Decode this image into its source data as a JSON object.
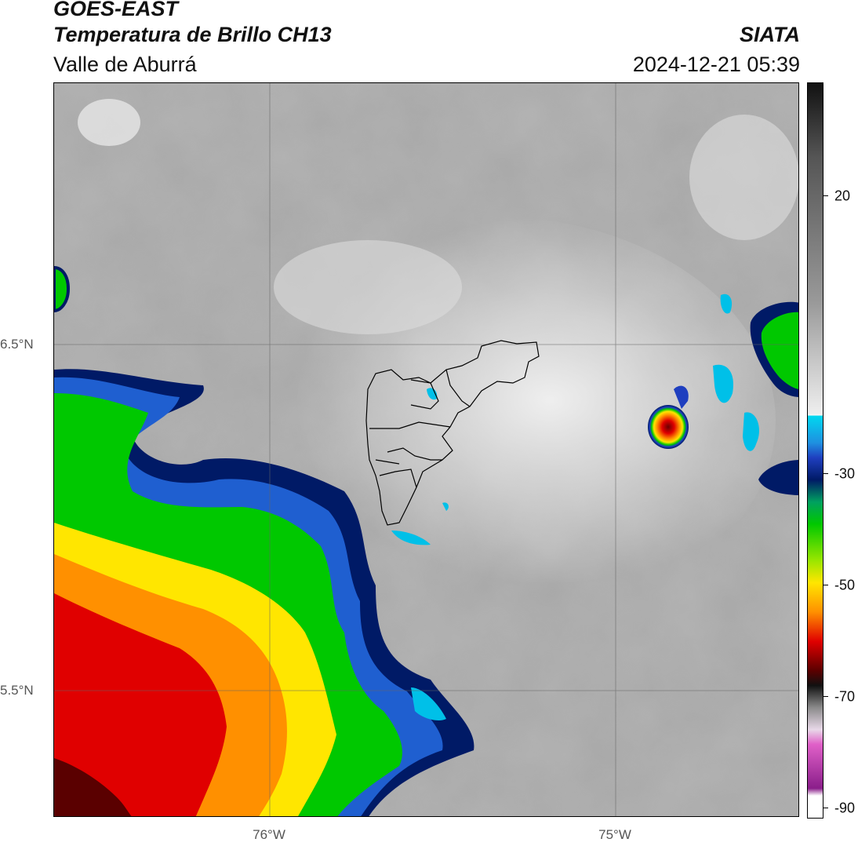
{
  "header": {
    "satellite": "GOES-EAST",
    "product": "Temperatura de Brillo CH13",
    "region": "Valle de Aburrá",
    "agency": "SIATA",
    "datetime": "2024-12-21 05:39"
  },
  "map": {
    "lat_labels": [
      "6.5°N",
      "5.5°N"
    ],
    "lon_labels": [
      "76°W",
      "75°W"
    ],
    "grid": true,
    "boundary": "Valle de Aburrá municipalities outline"
  },
  "colorbar": {
    "ticks": [
      "20",
      "-30",
      "-50",
      "-70",
      "-90"
    ],
    "colors": {
      "warm_gray_top": "#111111",
      "gray_mid": "#9a9a9a",
      "light": "#eeeeee",
      "cyan": "#00d8f0",
      "blue": "#1f3fbf",
      "navy": "#001a66",
      "green": "#00c800",
      "yellow": "#ffe600",
      "orange": "#ff9000",
      "red": "#e00000",
      "dark_red": "#5a0000",
      "magenta": "#e060c8",
      "purple": "#8a1e8a"
    }
  }
}
